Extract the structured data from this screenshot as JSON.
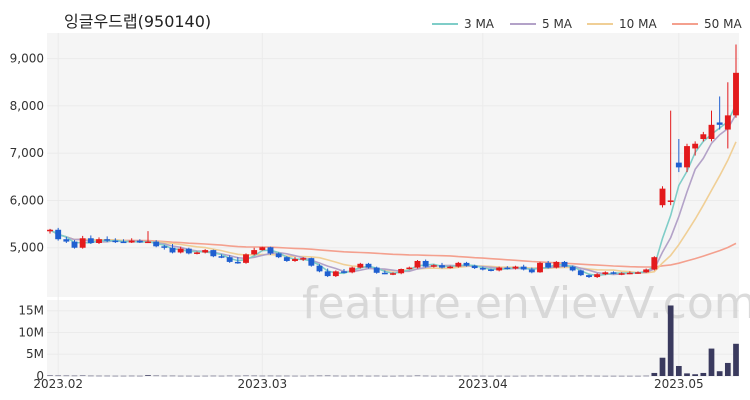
{
  "chart_data": {
    "type": "candlestick",
    "title": "잉글우드랩(950140)",
    "watermark": "feature.enVievV.com",
    "legend": {
      "placement": "top-right",
      "items": [
        {
          "name": "3 MA",
          "color": "#7fcdc8"
        },
        {
          "name": "5 MA",
          "color": "#b3a2c8"
        },
        {
          "name": "10 MA",
          "color": "#f0cf96"
        },
        {
          "name": "50 MA",
          "color": "#f4a08e"
        }
      ]
    },
    "colors": {
      "up": "#e31a1c",
      "down": "#1f5fd0",
      "volume": "#3a3a5e",
      "grid": "#ebebeb",
      "panel": "#f5f5f5"
    },
    "price_axis": {
      "ylim": [
        4000,
        9500
      ],
      "ticks": [
        5000,
        6000,
        7000,
        8000,
        9000
      ],
      "tick_labels": [
        "5,000",
        "6,000",
        "7,000",
        "8,000",
        "9,000"
      ]
    },
    "volume_axis": {
      "ylim": [
        0,
        17000000
      ],
      "ticks": [
        0,
        5000000,
        10000000,
        15000000
      ],
      "tick_labels": [
        "0",
        "5M",
        "10M",
        "15M"
      ]
    },
    "x_axis": {
      "tick_labels": [
        "2023.02",
        "2023.03",
        "2023.04",
        "2023.05"
      ],
      "tick_indices": [
        1,
        26,
        53,
        77
      ]
    },
    "ohlc": [
      [
        5350,
        5400,
        5300,
        5380
      ],
      [
        5380,
        5420,
        5150,
        5180
      ],
      [
        5180,
        5230,
        5100,
        5130
      ],
      [
        5130,
        5160,
        4980,
        5000
      ],
      [
        5000,
        5250,
        4980,
        5200
      ],
      [
        5200,
        5260,
        5080,
        5100
      ],
      [
        5100,
        5220,
        5080,
        5180
      ],
      [
        5180,
        5240,
        5120,
        5150
      ],
      [
        5150,
        5200,
        5100,
        5130
      ],
      [
        5130,
        5180,
        5100,
        5110
      ],
      [
        5110,
        5200,
        5100,
        5150
      ],
      [
        5150,
        5180,
        5100,
        5110
      ],
      [
        5110,
        5350,
        5100,
        5130
      ],
      [
        5130,
        5160,
        5010,
        5030
      ],
      [
        5030,
        5060,
        4960,
        5000
      ],
      [
        5000,
        5080,
        4880,
        4900
      ],
      [
        4900,
        5020,
        4880,
        4980
      ],
      [
        4980,
        5000,
        4860,
        4880
      ],
      [
        4880,
        4920,
        4860,
        4900
      ],
      [
        4900,
        4970,
        4880,
        4950
      ],
      [
        4950,
        4960,
        4800,
        4820
      ],
      [
        4820,
        4860,
        4780,
        4800
      ],
      [
        4800,
        4840,
        4680,
        4700
      ],
      [
        4700,
        4800,
        4660,
        4680
      ],
      [
        4680,
        4880,
        4660,
        4860
      ],
      [
        4860,
        5000,
        4840,
        4950
      ],
      [
        4950,
        5020,
        4940,
        5010
      ],
      [
        5010,
        5020,
        4850,
        4880
      ],
      [
        4880,
        4900,
        4780,
        4800
      ],
      [
        4800,
        4820,
        4700,
        4720
      ],
      [
        4720,
        4800,
        4700,
        4760
      ],
      [
        4760,
        4800,
        4720,
        4780
      ],
      [
        4780,
        4790,
        4600,
        4620
      ],
      [
        4620,
        4650,
        4480,
        4500
      ],
      [
        4500,
        4560,
        4380,
        4400
      ],
      [
        4400,
        4520,
        4380,
        4500
      ],
      [
        4500,
        4550,
        4460,
        4480
      ],
      [
        4480,
        4600,
        4460,
        4580
      ],
      [
        4580,
        4680,
        4560,
        4660
      ],
      [
        4660,
        4680,
        4560,
        4580
      ],
      [
        4580,
        4600,
        4450,
        4470
      ],
      [
        4470,
        4520,
        4440,
        4450
      ],
      [
        4450,
        4480,
        4420,
        4460
      ],
      [
        4460,
        4560,
        4440,
        4550
      ],
      [
        4550,
        4600,
        4540,
        4580
      ],
      [
        4580,
        4740,
        4560,
        4720
      ],
      [
        4720,
        4750,
        4580,
        4600
      ],
      [
        4600,
        4650,
        4580,
        4630
      ],
      [
        4630,
        4680,
        4560,
        4580
      ],
      [
        4580,
        4620,
        4560,
        4600
      ],
      [
        4600,
        4700,
        4580,
        4680
      ],
      [
        4680,
        4700,
        4600,
        4620
      ],
      [
        4620,
        4640,
        4550,
        4570
      ],
      [
        4570,
        4600,
        4520,
        4540
      ],
      [
        4540,
        4560,
        4500,
        4520
      ],
      [
        4520,
        4600,
        4500,
        4580
      ],
      [
        4580,
        4610,
        4540,
        4560
      ],
      [
        4560,
        4620,
        4540,
        4600
      ],
      [
        4600,
        4640,
        4520,
        4540
      ],
      [
        4540,
        4580,
        4460,
        4480
      ],
      [
        4480,
        4700,
        4470,
        4680
      ],
      [
        4680,
        4720,
        4560,
        4580
      ],
      [
        4580,
        4720,
        4560,
        4700
      ],
      [
        4700,
        4720,
        4580,
        4600
      ],
      [
        4600,
        4620,
        4500,
        4520
      ],
      [
        4520,
        4540,
        4400,
        4420
      ],
      [
        4420,
        4430,
        4360,
        4380
      ],
      [
        4380,
        4460,
        4360,
        4440
      ],
      [
        4440,
        4500,
        4420,
        4480
      ],
      [
        4480,
        4500,
        4440,
        4460
      ],
      [
        4460,
        4480,
        4420,
        4460
      ],
      [
        4460,
        4500,
        4440,
        4470
      ],
      [
        4470,
        4500,
        4450,
        4480
      ],
      [
        4480,
        4560,
        4470,
        4540
      ],
      [
        4540,
        4820,
        4520,
        4800
      ],
      [
        5900,
        6300,
        5850,
        6250
      ],
      [
        6000,
        7900,
        5900,
        6000
      ],
      [
        6800,
        7300,
        6600,
        6700
      ],
      [
        6700,
        7200,
        6600,
        7150
      ],
      [
        7100,
        7250,
        6950,
        7200
      ],
      [
        7300,
        7450,
        7250,
        7400
      ],
      [
        7300,
        7900,
        7250,
        7600
      ],
      [
        7650,
        8200,
        7500,
        7600
      ],
      [
        7500,
        8500,
        7100,
        7800
      ],
      [
        7800,
        9300,
        7750,
        8700
      ]
    ],
    "volume": [
      120000,
      100000,
      90000,
      80000,
      110000,
      70000,
      60000,
      60000,
      50000,
      50000,
      60000,
      50000,
      180000,
      90000,
      60000,
      70000,
      50000,
      50000,
      40000,
      50000,
      60000,
      50000,
      70000,
      60000,
      90000,
      80000,
      60000,
      70000,
      60000,
      60000,
      50000,
      50000,
      70000,
      80000,
      90000,
      60000,
      50000,
      60000,
      70000,
      50000,
      60000,
      40000,
      40000,
      60000,
      50000,
      90000,
      60000,
      40000,
      50000,
      40000,
      60000,
      50000,
      50000,
      50000,
      40000,
      50000,
      40000,
      40000,
      50000,
      60000,
      70000,
      60000,
      60000,
      50000,
      50000,
      70000,
      60000,
      50000,
      40000,
      40000,
      40000,
      40000,
      40000,
      60000,
      700000,
      4200000,
      16200000,
      2300000,
      600000,
      400000,
      700000,
      6300000,
      1100000,
      3000000,
      7400000
    ]
  }
}
